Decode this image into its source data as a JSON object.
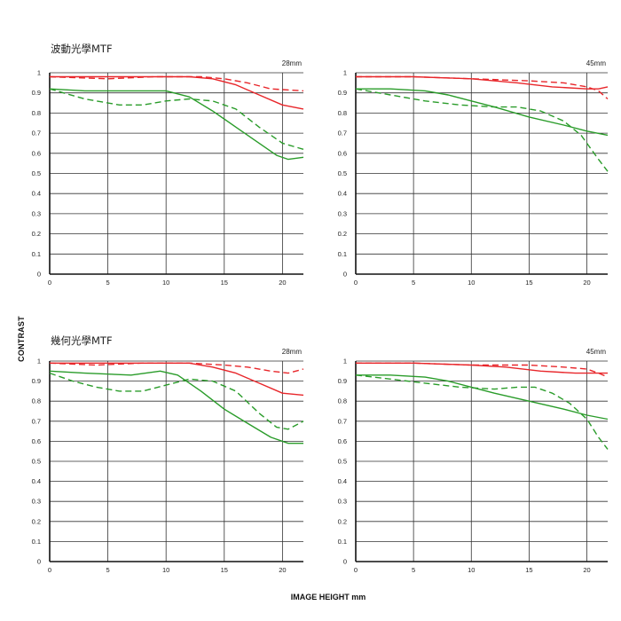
{
  "titles": {
    "top": "波動光學MTF",
    "bottom": "幾何光學MTF"
  },
  "axis_labels": {
    "y": "CONTRAST",
    "x": "IMAGE HEIGHT mm"
  },
  "colors": {
    "red": "#e8262a",
    "green": "#2a9c2a",
    "grid": "#333333"
  },
  "chart_data": [
    {
      "type": "line",
      "group": "波動光學MTF",
      "label": "28mm",
      "xlim": [
        0,
        21.8
      ],
      "ylim": [
        0,
        1
      ],
      "xticks": [
        0,
        5,
        10,
        15,
        20
      ],
      "yticks": [
        0,
        0.1,
        0.2,
        0.3,
        0.4,
        0.5,
        0.6,
        0.7,
        0.8,
        0.9,
        1
      ],
      "ytick_labels": [
        "0",
        "0.1",
        "0.2",
        "0.3",
        "0.4",
        "0.5",
        "0.6",
        "0.7",
        "0.8",
        "0.9",
        "1"
      ],
      "grid": true,
      "series": [
        {
          "color": "red",
          "dash": false,
          "x": [
            0,
            4,
            8,
            12,
            14,
            16,
            18,
            20,
            21.8
          ],
          "y": [
            0.98,
            0.98,
            0.98,
            0.98,
            0.97,
            0.94,
            0.89,
            0.84,
            0.82
          ]
        },
        {
          "color": "red",
          "dash": true,
          "x": [
            0,
            5,
            9,
            13,
            15,
            17,
            19,
            21.8
          ],
          "y": [
            0.98,
            0.97,
            0.98,
            0.98,
            0.97,
            0.95,
            0.92,
            0.91
          ]
        },
        {
          "color": "green",
          "dash": false,
          "x": [
            0,
            3,
            7,
            10,
            12,
            14,
            16,
            18,
            19.5,
            20.5,
            21.8
          ],
          "y": [
            0.92,
            0.91,
            0.91,
            0.91,
            0.88,
            0.81,
            0.73,
            0.65,
            0.59,
            0.57,
            0.58
          ]
        },
        {
          "color": "green",
          "dash": true,
          "x": [
            0,
            3,
            6,
            8,
            10,
            12,
            14,
            16,
            18,
            20,
            21.8
          ],
          "y": [
            0.92,
            0.87,
            0.84,
            0.84,
            0.86,
            0.87,
            0.86,
            0.82,
            0.73,
            0.65,
            0.62
          ]
        }
      ]
    },
    {
      "type": "line",
      "group": "波動光學MTF",
      "label": "45mm",
      "xlim": [
        0,
        21.8
      ],
      "ylim": [
        0,
        1
      ],
      "xticks": [
        0,
        5,
        10,
        15,
        20
      ],
      "yticks": [
        0,
        0.1,
        0.2,
        0.3,
        0.4,
        0.5,
        0.6,
        0.7,
        0.8,
        0.9,
        1
      ],
      "ytick_labels": [
        "0",
        "0.1",
        "0.2",
        "0.3",
        "0.4",
        "0.5",
        "0.6",
        "0.7",
        "0.8",
        "0.9",
        "1"
      ],
      "grid": true,
      "series": [
        {
          "color": "red",
          "dash": false,
          "x": [
            0,
            5,
            10,
            14,
            17,
            20,
            21,
            21.8
          ],
          "y": [
            0.98,
            0.98,
            0.97,
            0.95,
            0.93,
            0.92,
            0.92,
            0.93
          ]
        },
        {
          "color": "red",
          "dash": true,
          "x": [
            0,
            5,
            10,
            15,
            18,
            20,
            21,
            21.8
          ],
          "y": [
            0.98,
            0.98,
            0.97,
            0.96,
            0.95,
            0.93,
            0.91,
            0.87
          ]
        },
        {
          "color": "green",
          "dash": false,
          "x": [
            0,
            3,
            6,
            8,
            10,
            12,
            15,
            18,
            20,
            21.8
          ],
          "y": [
            0.92,
            0.92,
            0.91,
            0.89,
            0.86,
            0.83,
            0.78,
            0.74,
            0.71,
            0.69
          ]
        },
        {
          "color": "green",
          "dash": true,
          "x": [
            0,
            3,
            6,
            9,
            12,
            14,
            16,
            18,
            19.5,
            21,
            21.8
          ],
          "y": [
            0.92,
            0.89,
            0.86,
            0.84,
            0.83,
            0.83,
            0.81,
            0.76,
            0.69,
            0.57,
            0.51
          ]
        }
      ]
    },
    {
      "type": "line",
      "group": "幾何光學MTF",
      "label": "28mm",
      "xlim": [
        0,
        21.8
      ],
      "ylim": [
        0,
        1
      ],
      "xticks": [
        0,
        5,
        10,
        15,
        20
      ],
      "yticks": [
        0,
        0.1,
        0.2,
        0.3,
        0.4,
        0.5,
        0.6,
        0.7,
        0.8,
        0.9,
        1
      ],
      "ytick_labels": [
        "0",
        "0.1",
        "0.2",
        "0.3",
        "0.4",
        "0.5",
        "0.6",
        "0.7",
        "0.8",
        "0.9",
        "1"
      ],
      "grid": true,
      "series": [
        {
          "color": "red",
          "dash": false,
          "x": [
            0,
            4,
            8,
            12,
            14,
            16,
            18,
            20,
            21.8
          ],
          "y": [
            0.99,
            0.99,
            0.99,
            0.99,
            0.97,
            0.94,
            0.89,
            0.84,
            0.83
          ]
        },
        {
          "color": "red",
          "dash": true,
          "x": [
            0,
            4,
            8,
            12,
            15,
            17,
            19,
            20.5,
            21.8
          ],
          "y": [
            0.99,
            0.98,
            0.99,
            0.99,
            0.98,
            0.97,
            0.95,
            0.94,
            0.96
          ]
        },
        {
          "color": "green",
          "dash": false,
          "x": [
            0,
            3,
            7,
            9.5,
            11,
            13,
            15,
            17,
            19,
            20.5,
            21.8
          ],
          "y": [
            0.95,
            0.94,
            0.93,
            0.95,
            0.93,
            0.85,
            0.76,
            0.69,
            0.62,
            0.59,
            0.59
          ]
        },
        {
          "color": "green",
          "dash": true,
          "x": [
            0,
            2,
            4,
            6,
            8,
            10,
            12,
            14,
            16,
            18,
            19.5,
            20.5,
            21.8
          ],
          "y": [
            0.94,
            0.9,
            0.87,
            0.85,
            0.85,
            0.88,
            0.91,
            0.9,
            0.85,
            0.74,
            0.67,
            0.66,
            0.7
          ]
        }
      ]
    },
    {
      "type": "line",
      "group": "幾何光學MTF",
      "label": "45mm",
      "xlim": [
        0,
        21.8
      ],
      "ylim": [
        0,
        1
      ],
      "xticks": [
        0,
        5,
        10,
        15,
        20
      ],
      "yticks": [
        0,
        0.1,
        0.2,
        0.3,
        0.4,
        0.5,
        0.6,
        0.7,
        0.8,
        0.9,
        1
      ],
      "ytick_labels": [
        "0",
        "0.1",
        "0.2",
        "0.3",
        "0.4",
        "0.5",
        "0.6",
        "0.7",
        "0.8",
        "0.9",
        "1"
      ],
      "grid": true,
      "series": [
        {
          "color": "red",
          "dash": false,
          "x": [
            0,
            5,
            10,
            13,
            16,
            19,
            21,
            21.8
          ],
          "y": [
            0.99,
            0.99,
            0.98,
            0.97,
            0.95,
            0.94,
            0.94,
            0.94
          ]
        },
        {
          "color": "red",
          "dash": true,
          "x": [
            0,
            5,
            10,
            15,
            18,
            20,
            21,
            21.8
          ],
          "y": [
            0.99,
            0.99,
            0.98,
            0.98,
            0.97,
            0.96,
            0.94,
            0.92
          ]
        },
        {
          "color": "green",
          "dash": false,
          "x": [
            0,
            3,
            6,
            8,
            10,
            12,
            15,
            18,
            20,
            21.8
          ],
          "y": [
            0.93,
            0.93,
            0.92,
            0.9,
            0.87,
            0.84,
            0.8,
            0.76,
            0.73,
            0.71
          ]
        },
        {
          "color": "green",
          "dash": true,
          "x": [
            0,
            3,
            6,
            9,
            12,
            14,
            15.5,
            17,
            18.5,
            20,
            21,
            21.8
          ],
          "y": [
            0.93,
            0.91,
            0.89,
            0.87,
            0.86,
            0.87,
            0.87,
            0.84,
            0.79,
            0.71,
            0.62,
            0.56
          ]
        }
      ]
    }
  ]
}
